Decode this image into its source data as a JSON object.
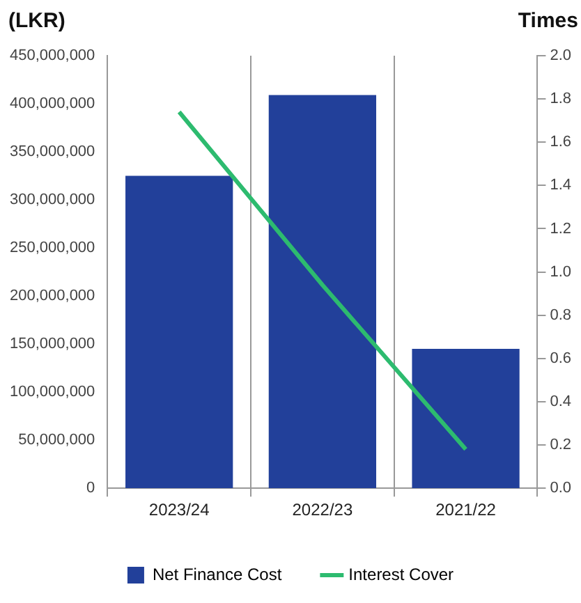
{
  "chart_data": {
    "type": "bar",
    "ylabel": "(LKR)",
    "y2label": "Times",
    "categories": [
      "2023/24",
      "2022/23",
      "2021/22"
    ],
    "series": [
      {
        "name": "Net Finance Cost",
        "color": "#22409a",
        "values": [
          325000000,
          409000000,
          145000000
        ]
      },
      {
        "name": "Interest Cover",
        "type": "line",
        "axis": "y2",
        "color": "#2dbb6f",
        "values": [
          1.74,
          0.94,
          0.18
        ]
      }
    ],
    "ylim": [
      0,
      450000000
    ],
    "yticks": [
      0,
      {
        "value": 50000000,
        "label": "50,000,000"
      },
      {
        "value": 100000000,
        "label": "100,000,000"
      },
      {
        "value": 150000000,
        "label": "150,000,000"
      },
      {
        "value": 200000000,
        "label": "200,000,000"
      },
      {
        "value": 250000000,
        "label": "250,000,000"
      },
      {
        "value": 300000000,
        "label": "300,000,000"
      },
      {
        "value": 350000000,
        "label": "350,000,000"
      },
      {
        "value": 400000000,
        "label": "400,000,000"
      },
      {
        "value": 450000000,
        "label": "450,000,000"
      }
    ],
    "y2lim": [
      0,
      2
    ],
    "y2ticks": [
      {
        "value": 0,
        "label": "0.0"
      },
      0.2,
      0.4,
      0.6,
      0.8,
      {
        "value": 1,
        "label": "1.0"
      },
      1.2,
      1.4,
      1.6,
      1.8,
      {
        "value": 2,
        "label": "2.0"
      }
    ],
    "grid": "x",
    "legend": "bottom",
    "marker": "none",
    "line_style": "solid"
  }
}
